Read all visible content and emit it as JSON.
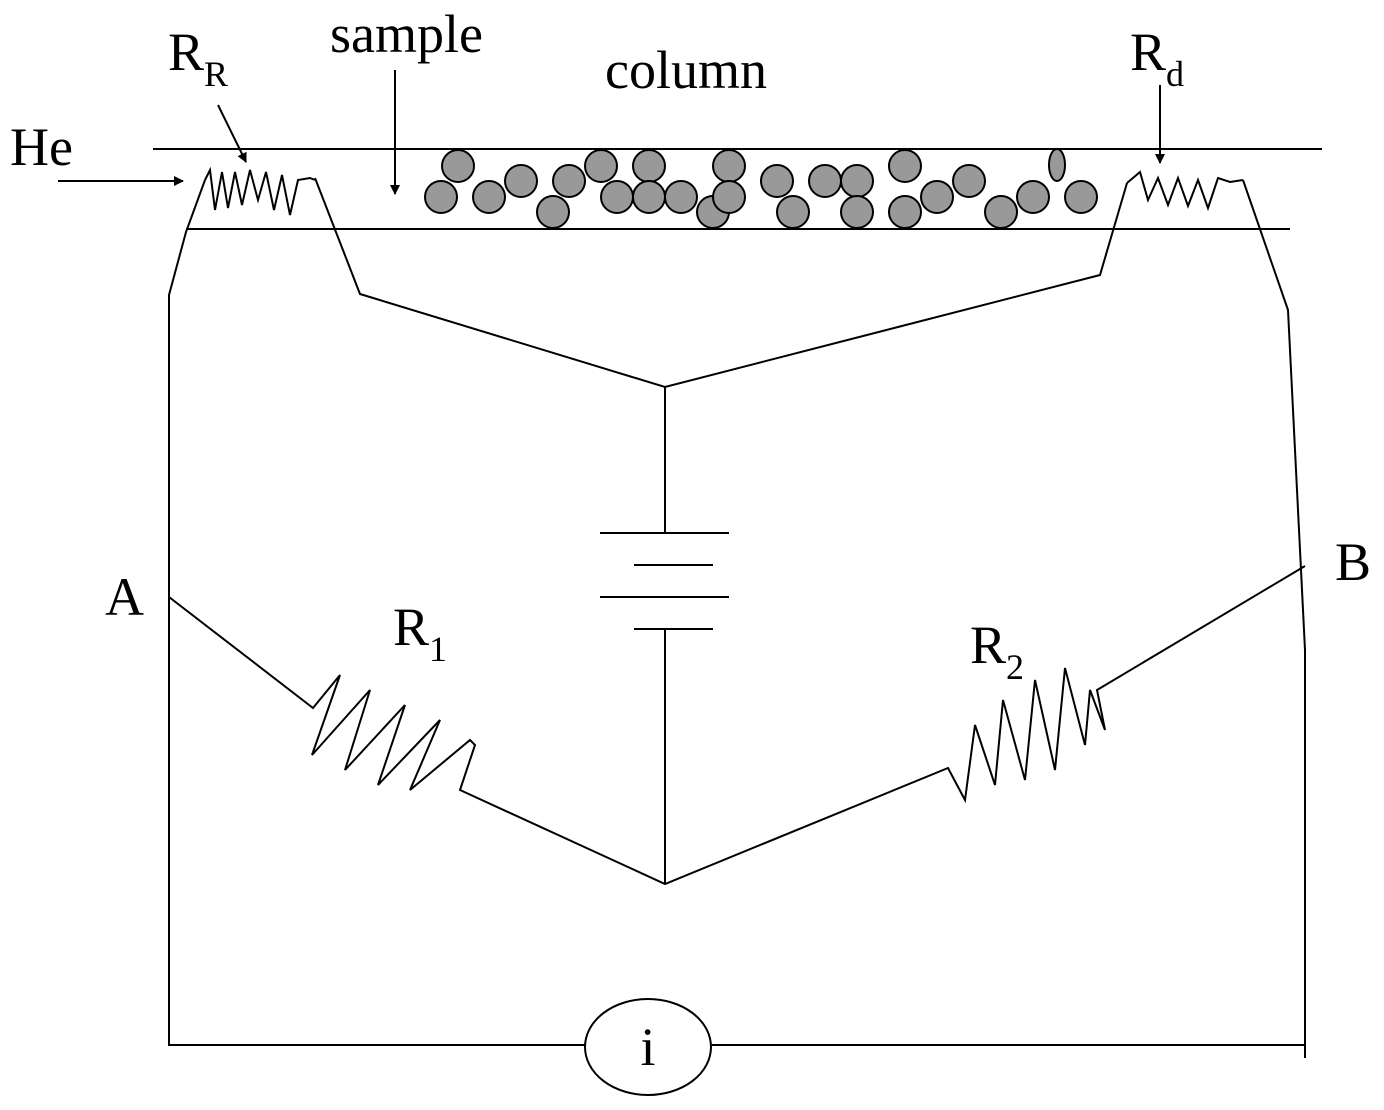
{
  "labels": {
    "he": "He",
    "sample": "sample",
    "column": "column",
    "rr": {
      "main": "R",
      "sub": "R"
    },
    "rd": {
      "main": "R",
      "sub": "d"
    },
    "a": "A",
    "b": "B",
    "r1": {
      "main": "R",
      "sub": "1"
    },
    "r2": {
      "main": "R",
      "sub": "2"
    },
    "meter": "i"
  }
}
